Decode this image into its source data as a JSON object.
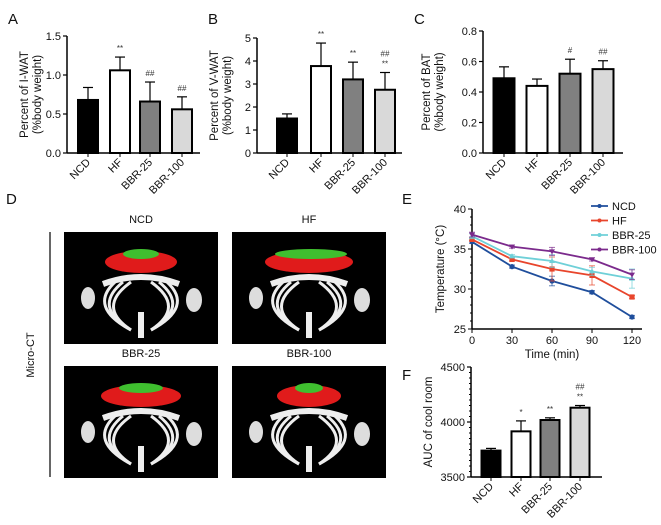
{
  "panel_labels": [
    "A",
    "B",
    "C",
    "D",
    "E",
    "F"
  ],
  "micro_ct": {
    "side_label": "Micro-CT",
    "images": [
      "NCD",
      "HF",
      "BBR-25",
      "BBR-100"
    ]
  },
  "colors": {
    "NCD": "#000000",
    "HF": "#ffffff",
    "BBR-25": "#808080",
    "BBR-100": "#d9d9d9"
  },
  "chart_data": [
    {
      "id": "A",
      "type": "bar",
      "categories": [
        "NCD",
        "HF",
        "BBR-25",
        "BBR-100"
      ],
      "values": [
        0.68,
        1.06,
        0.66,
        0.56
      ],
      "errors": [
        0.16,
        0.17,
        0.25,
        0.16
      ],
      "annotations": [
        "",
        "**",
        "##",
        "##"
      ],
      "ylabel": [
        "Percent of I-WAT",
        "(%body weight)"
      ],
      "ylim": [
        0,
        1.5
      ],
      "yticks": [
        "0.0",
        "0.5",
        "1.0",
        "1.5"
      ]
    },
    {
      "id": "B",
      "type": "bar",
      "categories": [
        "NCD",
        "HF",
        "BBR-25",
        "BBR-100"
      ],
      "values": [
        1.5,
        3.78,
        3.2,
        2.75
      ],
      "errors": [
        0.2,
        1.0,
        0.75,
        0.75
      ],
      "annotations": [
        "",
        "**",
        "**",
        "##\n**"
      ],
      "ylabel": [
        "Percent of V-WAT",
        "(%body weight)"
      ],
      "ylim": [
        0,
        5
      ],
      "yticks": [
        "0",
        "1",
        "2",
        "3",
        "4",
        "5"
      ]
    },
    {
      "id": "C",
      "type": "bar",
      "categories": [
        "NCD",
        "HF",
        "BBR-25",
        "BBR-100"
      ],
      "values": [
        0.49,
        0.44,
        0.52,
        0.55
      ],
      "errors": [
        0.075,
        0.045,
        0.095,
        0.055
      ],
      "annotations": [
        "",
        "",
        "#",
        "##"
      ],
      "ylabel": [
        "Percent of BAT",
        "(%body weight)"
      ],
      "ylim": [
        0,
        0.8
      ],
      "yticks": [
        "0.0",
        "0.2",
        "0.4",
        "0.6",
        "0.8"
      ]
    },
    {
      "id": "E",
      "type": "line",
      "x": [
        0,
        30,
        60,
        90,
        120
      ],
      "xlabel": "Time (min)",
      "ylabel": "Temperature (°C)",
      "xlim": [
        0,
        120
      ],
      "ylim": [
        25,
        40
      ],
      "xticks": [
        "0",
        "30",
        "60",
        "90",
        "120"
      ],
      "yticks": [
        "25",
        "30",
        "35",
        "40"
      ],
      "legend": "top-right",
      "series": [
        {
          "name": "NCD",
          "color": "#1f4e9c",
          "marker": "circle",
          "values": [
            35.9,
            32.8,
            31.0,
            29.6,
            26.5
          ],
          "errors": [
            0.2,
            0.2,
            0.6,
            0.2,
            0.2
          ]
        },
        {
          "name": "HF",
          "color": "#e8452c",
          "marker": "square",
          "values": [
            36.2,
            33.7,
            32.5,
            31.7,
            29.0
          ],
          "errors": [
            0.2,
            0.2,
            1.5,
            1.2,
            0.2
          ]
        },
        {
          "name": "BBR-25",
          "color": "#6fd0d8",
          "marker": "triangle",
          "values": [
            36.6,
            34.1,
            33.5,
            32.2,
            31.3
          ],
          "errors": [
            0.3,
            0.2,
            0.8,
            0.5,
            1.2
          ]
        },
        {
          "name": "BBR-100",
          "color": "#7b2a8c",
          "marker": "triangle-down",
          "values": [
            36.8,
            35.3,
            34.7,
            33.7,
            31.8
          ],
          "errors": [
            0.3,
            0.2,
            0.5,
            0.2,
            0.6
          ]
        }
      ]
    },
    {
      "id": "F",
      "type": "bar",
      "categories": [
        "NCD",
        "HF",
        "BBR-25",
        "BBR-100"
      ],
      "values": [
        3740,
        3915,
        4018,
        4130
      ],
      "errors": [
        20,
        95,
        20,
        20
      ],
      "annotations": [
        "",
        "*",
        "**",
        "##\n**"
      ],
      "ylabel": [
        "AUC of cool room"
      ],
      "ylim": [
        3500,
        4500
      ],
      "yticks": [
        "3500",
        "4000",
        "4500"
      ]
    }
  ]
}
